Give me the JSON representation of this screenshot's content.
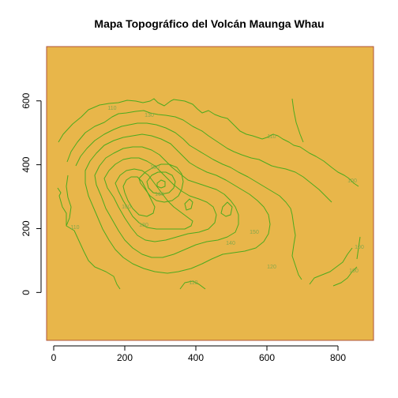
{
  "chart_data": {
    "type": "contour",
    "title": "Mapa Topográfico del Volcán Maunga Whau",
    "xlabel": "",
    "ylabel": "",
    "xlim": [
      -20,
      900
    ],
    "ylim": [
      -150,
      770
    ],
    "x_ticks": [
      0,
      200,
      400,
      600,
      800
    ],
    "y_ticks": [
      0,
      200,
      400,
      600
    ],
    "levels": [
      100,
      110,
      120,
      130,
      140,
      150,
      160,
      170,
      180,
      190
    ],
    "labeled_levels": [
      "110",
      "130",
      "190",
      "160",
      "180",
      "160",
      "110",
      "100",
      "150",
      "140",
      "120",
      "110",
      "100",
      "110",
      "100"
    ],
    "grid": false,
    "legend": "none",
    "colors": {
      "plot_background": "#e8b64a",
      "contour_line": "#4caa1e",
      "contour_label": "#86a84a",
      "plot_border": "#b0533a"
    }
  }
}
